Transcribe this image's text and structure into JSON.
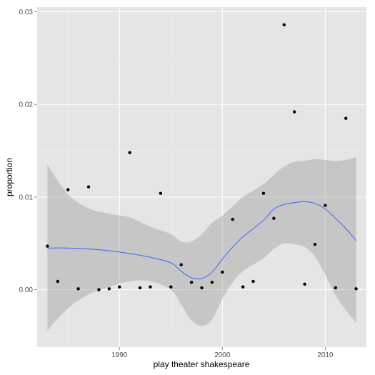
{
  "chart_data": {
    "type": "scatter",
    "xlabel": "play theater shakespeare",
    "ylabel": "proportion",
    "xlim": [
      1982,
      2014
    ],
    "ylim": [
      -0.0062,
      0.0305
    ],
    "x_major_ticks": [
      1990,
      2000,
      2010
    ],
    "x_tick_labels": [
      "1990",
      "2000",
      "2010"
    ],
    "y_major_ticks": [
      0,
      0.01,
      0.02,
      0.03
    ],
    "y_tick_labels": [
      "0.00",
      "0.01",
      "0.02",
      "0.03"
    ],
    "x_minor_ticks": [
      1985,
      1995,
      2005
    ],
    "y_minor_ticks": [
      -0.005,
      0.005,
      0.015,
      0.025
    ],
    "grid": true,
    "colors": {
      "panel": "#e5e5e5",
      "grid_major": "#ffffff",
      "grid_minor": "#f2f2f2",
      "points": "#000000",
      "smooth_line": "#3366ff",
      "ribbon": "#999999"
    },
    "points": [
      {
        "x": 1983,
        "y": 0.0047
      },
      {
        "x": 1984,
        "y": 0.0009
      },
      {
        "x": 1985,
        "y": 0.0108
      },
      {
        "x": 1986,
        "y": 0.0001
      },
      {
        "x": 1987,
        "y": 0.0111
      },
      {
        "x": 1988,
        "y": 0.0
      },
      {
        "x": 1989,
        "y": 0.0001
      },
      {
        "x": 1990,
        "y": 0.0003
      },
      {
        "x": 1991,
        "y": 0.0148
      },
      {
        "x": 1992,
        "y": 0.0002
      },
      {
        "x": 1993,
        "y": 0.0003
      },
      {
        "x": 1994,
        "y": 0.0104
      },
      {
        "x": 1995,
        "y": 0.0003
      },
      {
        "x": 1996,
        "y": 0.0027
      },
      {
        "x": 1997,
        "y": 0.0008
      },
      {
        "x": 1998,
        "y": 0.0002
      },
      {
        "x": 1999,
        "y": 0.0008
      },
      {
        "x": 2000,
        "y": 0.0019
      },
      {
        "x": 2001,
        "y": 0.0076
      },
      {
        "x": 2002,
        "y": 0.0003
      },
      {
        "x": 2003,
        "y": 0.0009
      },
      {
        "x": 2004,
        "y": 0.0104
      },
      {
        "x": 2005,
        "y": 0.0077
      },
      {
        "x": 2006,
        "y": 0.0286
      },
      {
        "x": 2007,
        "y": 0.0192
      },
      {
        "x": 2008,
        "y": 0.0006
      },
      {
        "x": 2009,
        "y": 0.0049
      },
      {
        "x": 2010,
        "y": 0.0091
      },
      {
        "x": 2011,
        "y": 0.0002
      },
      {
        "x": 2012,
        "y": 0.0185
      },
      {
        "x": 2013,
        "y": 0.0001
      }
    ],
    "smooth": {
      "x": [
        1983,
        1985,
        1987,
        1989,
        1991,
        1993,
        1995,
        1996,
        1997,
        1998,
        1999,
        2000,
        2001,
        2002,
        2004,
        2005,
        2006,
        2007,
        2008,
        2009,
        2010,
        2011,
        2012,
        2013
      ],
      "y": [
        0.0045,
        0.0045,
        0.0044,
        0.0042,
        0.0039,
        0.0035,
        0.0029,
        0.002,
        0.0013,
        0.0012,
        0.0019,
        0.0033,
        0.0046,
        0.0057,
        0.0075,
        0.0087,
        0.0092,
        0.0094,
        0.0095,
        0.0093,
        0.0087,
        0.0077,
        0.0066,
        0.0053
      ],
      "lower": [
        -0.0044,
        -0.002,
        -0.0005,
        0.0003,
        0.0009,
        0.0009,
        0.0,
        -0.0016,
        -0.0033,
        -0.0039,
        -0.0032,
        -0.001,
        0.0008,
        0.002,
        0.0034,
        0.0044,
        0.005,
        0.0049,
        0.0046,
        0.0036,
        0.0016,
        -0.0006,
        -0.0022,
        -0.0036
      ],
      "upper": [
        0.0135,
        0.0103,
        0.0088,
        0.0082,
        0.0078,
        0.0068,
        0.006,
        0.0052,
        0.0052,
        0.006,
        0.0072,
        0.008,
        0.009,
        0.01,
        0.0114,
        0.0124,
        0.0133,
        0.0138,
        0.0139,
        0.0141,
        0.014,
        0.0139,
        0.014,
        0.0143
      ]
    }
  }
}
